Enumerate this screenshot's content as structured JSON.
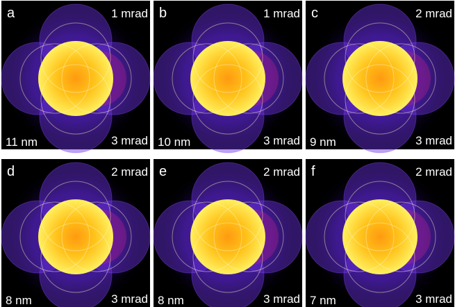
{
  "panels": [
    {
      "label": "a",
      "top_right": "1 mrad",
      "bottom_left": "11 nm",
      "bottom_right": "3 mrad"
    },
    {
      "label": "b",
      "top_right": "1 mrad",
      "bottom_left": "10 nm",
      "bottom_right": "3 mrad"
    },
    {
      "label": "c",
      "top_right": "2 mrad",
      "bottom_left": "9 nm",
      "bottom_right": "3 mrad"
    },
    {
      "label": "d",
      "top_right": "2 mrad",
      "bottom_left": "8 nm",
      "bottom_right": "3 mrad"
    },
    {
      "label": "e",
      "top_right": "2 mrad",
      "bottom_left": "8 nm",
      "bottom_right": "3 mrad"
    },
    {
      "label": "f",
      "top_right": "2 mrad",
      "bottom_left": "7 nm",
      "bottom_right": "3 mrad"
    }
  ]
}
